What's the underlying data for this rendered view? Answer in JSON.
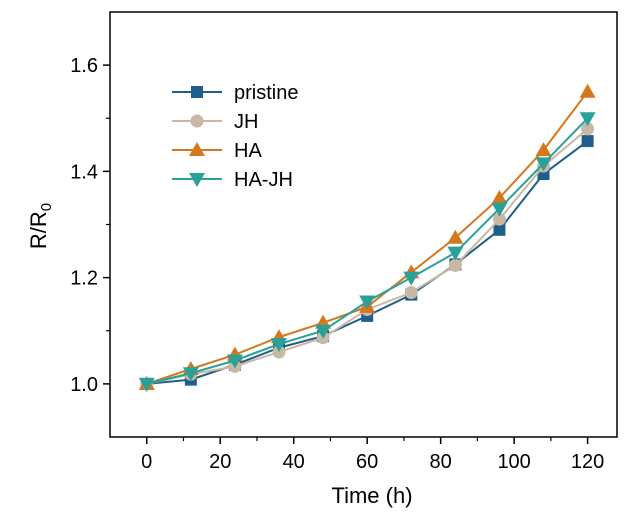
{
  "chart_data": {
    "type": "line",
    "title": "",
    "xlabel": "Time (h)",
    "ylabel_main": "R/R",
    "ylabel_sub": "0",
    "xlim": [
      -10,
      128
    ],
    "ylim": [
      0.9,
      1.7
    ],
    "xticks": [
      0,
      20,
      40,
      60,
      80,
      100,
      120
    ],
    "xtick_labels": [
      "0",
      "20",
      "40",
      "60",
      "80",
      "100",
      "120"
    ],
    "yticks": [
      1.0,
      1.2,
      1.4,
      1.6
    ],
    "ytick_labels": [
      "1.0",
      "1.2",
      "1.4",
      "1.6"
    ],
    "x": [
      0,
      12,
      24,
      36,
      48,
      60,
      72,
      84,
      96,
      108,
      120
    ],
    "legend_position": "top-left",
    "grid": false,
    "series": [
      {
        "name": "pristine",
        "marker": "square",
        "color": "#1f5f8b",
        "values": [
          1.0,
          1.008,
          1.036,
          1.068,
          1.09,
          1.128,
          1.168,
          1.225,
          1.29,
          1.395,
          1.457
        ]
      },
      {
        "name": "JH",
        "marker": "circle",
        "color": "#c8b8a4",
        "values": [
          1.0,
          1.018,
          1.033,
          1.06,
          1.087,
          1.14,
          1.172,
          1.223,
          1.31,
          1.41,
          1.48
        ]
      },
      {
        "name": "HA",
        "marker": "triangle-up",
        "color": "#d4781e",
        "values": [
          1.0,
          1.028,
          1.055,
          1.088,
          1.115,
          1.145,
          1.21,
          1.275,
          1.35,
          1.44,
          1.55
        ]
      },
      {
        "name": "HA-JH",
        "marker": "triangle-down",
        "color": "#2aa198",
        "values": [
          1.0,
          1.02,
          1.044,
          1.075,
          1.1,
          1.155,
          1.2,
          1.247,
          1.33,
          1.415,
          1.5
        ]
      }
    ]
  }
}
